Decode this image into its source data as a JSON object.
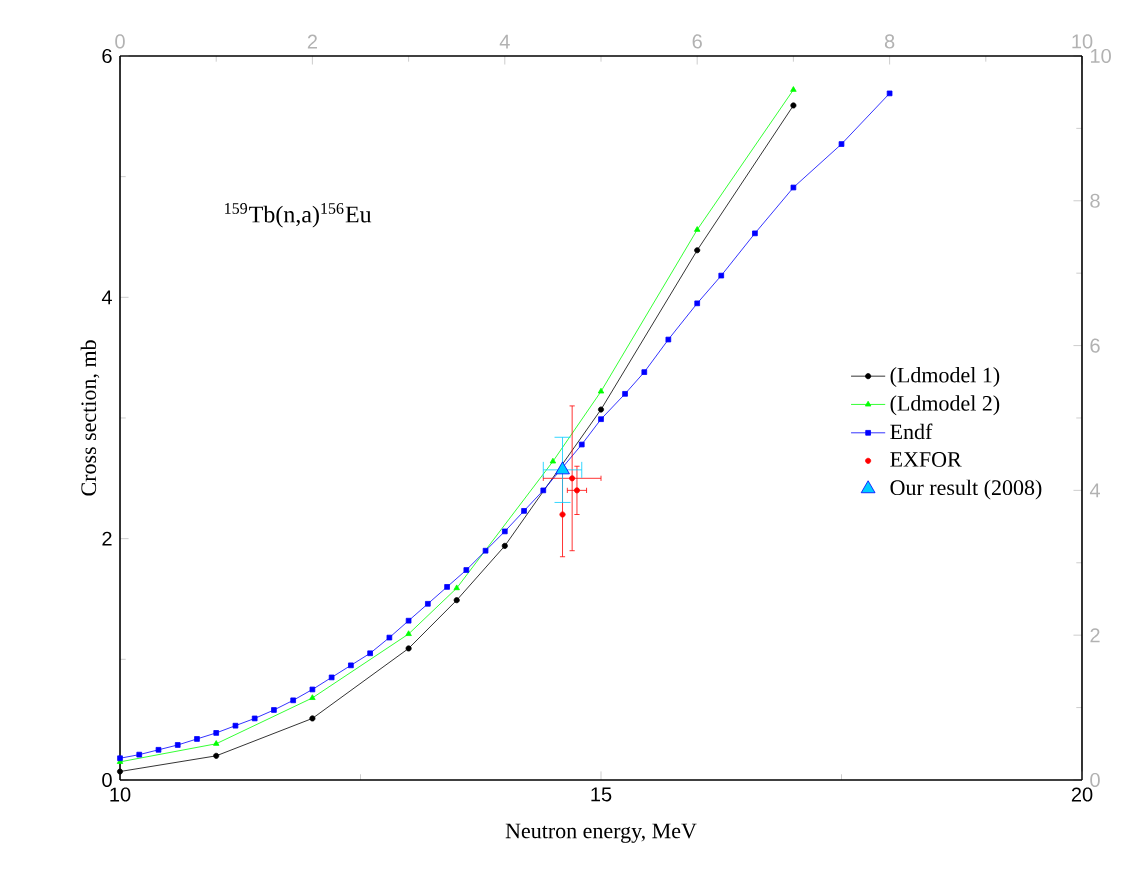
{
  "chart_data": {
    "type": "line",
    "xlabel": "Neutron energy, MeV",
    "ylabel": "Cross section, mb",
    "annotations": [
      "$^{159}$Tb(n,a)$^{156}$Eu"
    ],
    "xlim": [
      10,
      20
    ],
    "xticks": [
      10,
      15,
      20
    ],
    "ylim": [
      0,
      6
    ],
    "yticks": [
      0,
      2,
      4,
      6
    ],
    "x2lim": [
      0,
      10
    ],
    "x2ticks": [
      0,
      2,
      4,
      6,
      8,
      10
    ],
    "y2lim": [
      0,
      10
    ],
    "y2ticks": [
      0,
      2,
      4,
      6,
      8,
      10
    ],
    "grid": false,
    "legend": "right",
    "series": [
      {
        "name": "(Ldmodel 1)",
        "color": "#000000",
        "marker": "circle",
        "x": [
          10,
          11,
          12,
          13,
          13.5,
          14,
          15,
          16,
          17
        ],
        "values": [
          0.07,
          0.2,
          0.51,
          1.09,
          1.49,
          1.94,
          3.07,
          4.39,
          5.59
        ]
      },
      {
        "name": "(Ldmodel 2)",
        "color": "#00ff00",
        "marker": "triangle",
        "x": [
          10,
          11,
          12,
          13,
          13.5,
          14.5,
          15,
          16,
          17
        ],
        "values": [
          0.15,
          0.3,
          0.68,
          1.21,
          1.59,
          2.64,
          3.22,
          4.56,
          5.72
        ]
      },
      {
        "name": "Endf",
        "color": "#0000ff",
        "marker": "square",
        "x": [
          10,
          10.2,
          10.4,
          10.6,
          10.8,
          11,
          11.2,
          11.4,
          11.6,
          11.8,
          12,
          12.2,
          12.4,
          12.6,
          12.8,
          13,
          13.2,
          13.4,
          13.6,
          13.8,
          14,
          14.2,
          14.4,
          14.6,
          14.8,
          15,
          15.25,
          15.45,
          15.7,
          16,
          16.25,
          16.6,
          17,
          17.5,
          18
        ],
        "values": [
          0.18,
          0.21,
          0.25,
          0.29,
          0.34,
          0.39,
          0.45,
          0.51,
          0.58,
          0.66,
          0.75,
          0.85,
          0.95,
          1.05,
          1.18,
          1.32,
          1.46,
          1.6,
          1.74,
          1.9,
          2.06,
          2.23,
          2.4,
          null,
          2.78,
          2.99,
          3.2,
          3.38,
          3.65,
          3.95,
          4.18,
          4.53,
          4.91,
          5.27,
          5.69
        ]
      },
      {
        "name": "EXFOR",
        "type": "scatter",
        "color": "#ff0000",
        "marker": "circle",
        "x": [
          14.7,
          14.6,
          14.75
        ],
        "values": [
          2.5,
          2.2,
          2.4
        ],
        "errors": [
          0.6,
          0.35,
          0.2
        ],
        "xerrors": [
          0.3,
          null,
          0.1
        ]
      },
      {
        "name": "Our result (2008)",
        "type": "scatter",
        "color": "#00ccff",
        "marker": "triangle",
        "x": [
          14.6
        ],
        "values": [
          2.57
        ],
        "errors": [
          0.27
        ],
        "xerrors": [
          0.2
        ]
      }
    ]
  }
}
